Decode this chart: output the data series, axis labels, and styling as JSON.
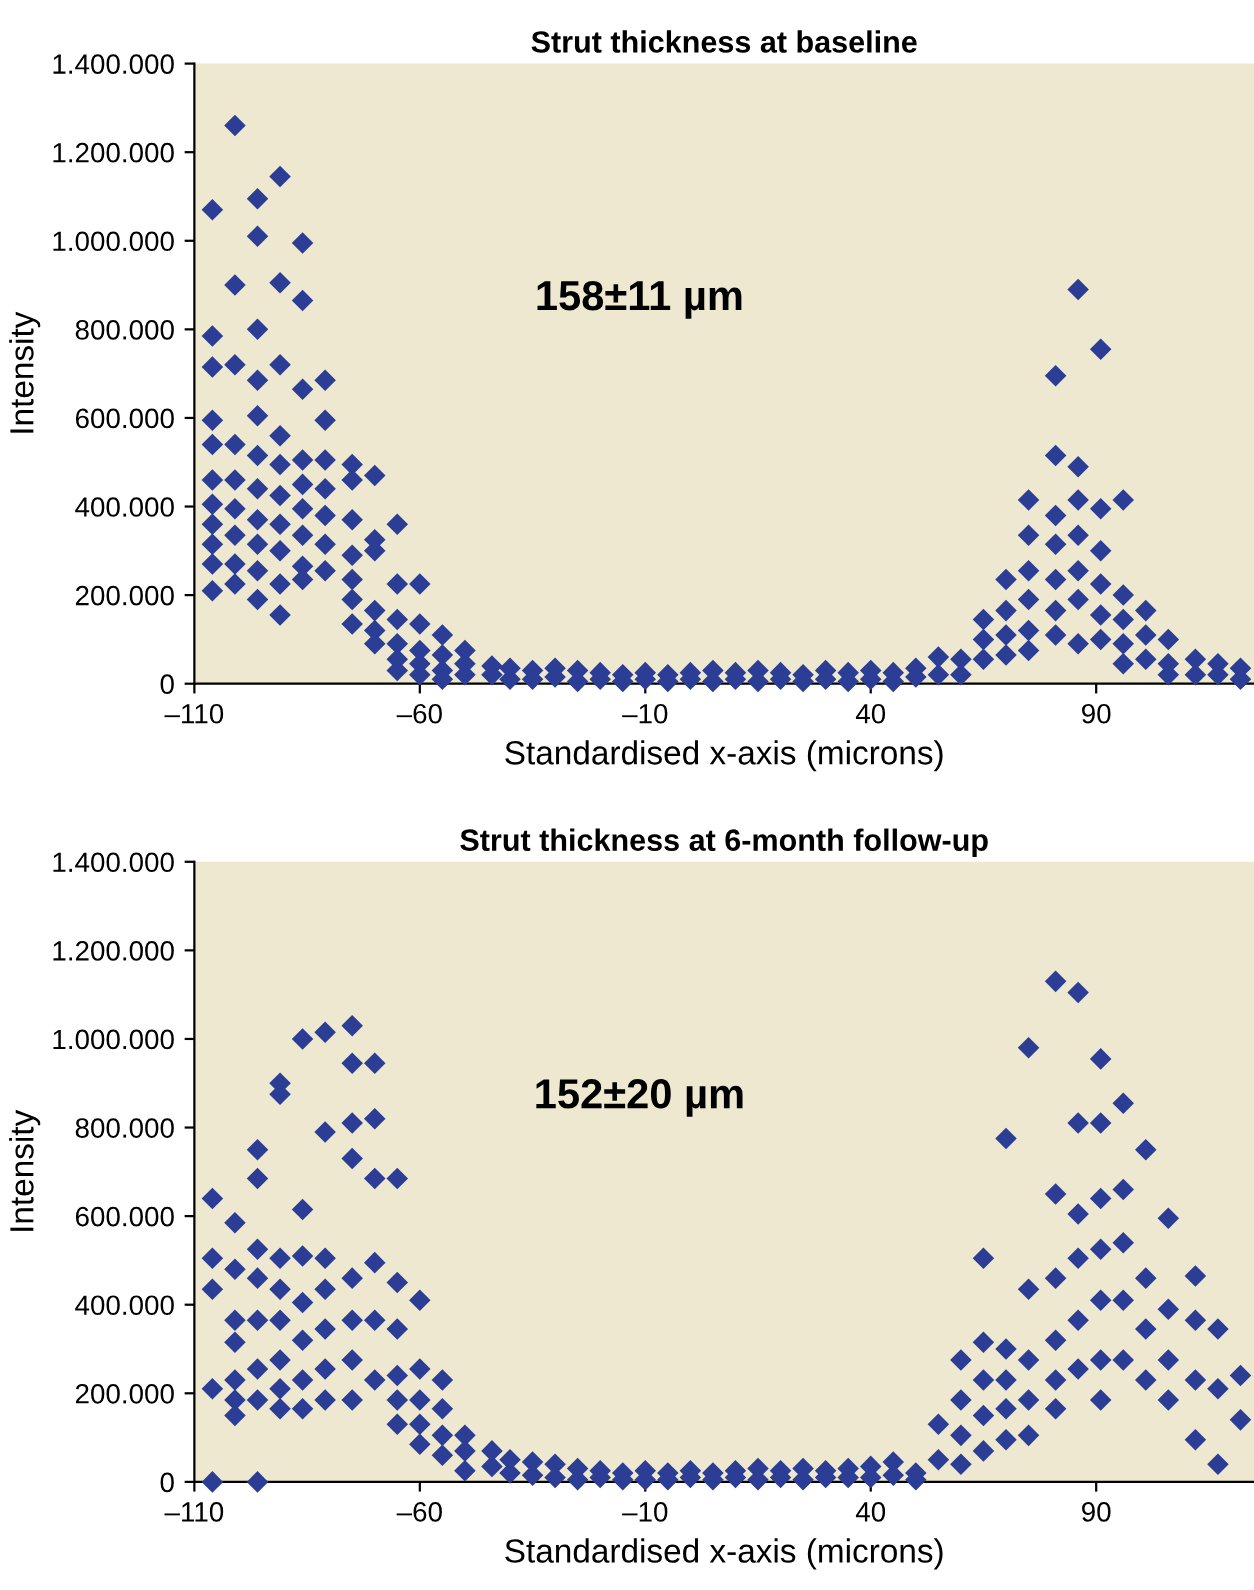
{
  "chart_data": [
    {
      "type": "scatter",
      "title": "Strut thickness at baseline",
      "xlabel": "Standardised x-axis (microns)",
      "ylabel": "Intensity",
      "annotations": [
        "158±11 µm"
      ],
      "color": "#2b3d94",
      "marker": "diamond",
      "grid": false,
      "legend": false,
      "xlim": [
        -110,
        125
      ],
      "ylim": [
        0,
        1400000
      ],
      "xticks": [
        {
          "value": -110,
          "label": "–110"
        },
        {
          "value": -60,
          "label": "–60"
        },
        {
          "value": -10,
          "label": "–10"
        },
        40,
        90
      ],
      "yticks": [
        0,
        {
          "value": 200000,
          "label": "200.000"
        },
        {
          "value": 400000,
          "label": "400.000"
        },
        {
          "value": 600000,
          "label": "600.000"
        },
        {
          "value": 800000,
          "label": "800.000"
        },
        {
          "value": 1000000,
          "label": "1.000.000"
        },
        {
          "value": 1200000,
          "label": "1.200.000"
        },
        {
          "value": 1400000,
          "label": "1.400.000"
        }
      ],
      "x": [
        -106,
        -106,
        -106,
        -106,
        -106,
        -106,
        -106,
        -106,
        -106,
        -106,
        -106,
        -101,
        -101,
        -101,
        -101,
        -101,
        -101,
        -101,
        -101,
        -101,
        -96,
        -96,
        -96,
        -96,
        -96,
        -96,
        -96,
        -96,
        -96,
        -96,
        -96,
        -91,
        -91,
        -91,
        -91,
        -91,
        -91,
        -91,
        -91,
        -91,
        -91,
        -86,
        -86,
        -86,
        -86,
        -86,
        -86,
        -86,
        -86,
        -86,
        -81,
        -81,
        -81,
        -81,
        -81,
        -81,
        -81,
        -75,
        -75,
        -75,
        -75,
        -75,
        -75,
        -75,
        -70,
        -70,
        -70,
        -70,
        -70,
        -70,
        -65,
        -65,
        -65,
        -65,
        -65,
        -65,
        -60,
        -60,
        -60,
        -60,
        -60,
        -55,
        -55,
        -55,
        -55,
        -50,
        -50,
        -50,
        -44,
        -44,
        -40,
        -40,
        -35,
        -35,
        -30,
        -30,
        -25,
        -25,
        -20,
        -20,
        -15,
        -15,
        -10,
        -10,
        -5,
        -5,
        0,
        0,
        5,
        5,
        10,
        10,
        15,
        15,
        20,
        20,
        25,
        25,
        30,
        30,
        35,
        35,
        40,
        40,
        45,
        45,
        50,
        50,
        55,
        55,
        60,
        60,
        65,
        65,
        65,
        70,
        70,
        70,
        70,
        75,
        75,
        75,
        75,
        75,
        75,
        81,
        81,
        81,
        81,
        81,
        81,
        81,
        86,
        86,
        86,
        86,
        86,
        86,
        86,
        91,
        91,
        91,
        91,
        91,
        91,
        96,
        96,
        96,
        96,
        96,
        101,
        101,
        101,
        106,
        106,
        106,
        112,
        112,
        117,
        117,
        122,
        122
      ],
      "values": [
        1070000,
        785000,
        715000,
        595000,
        540000,
        460000,
        405000,
        360000,
        315000,
        270000,
        210000,
        1260000,
        900000,
        720000,
        540000,
        460000,
        395000,
        335000,
        270000,
        225000,
        1095000,
        1010000,
        800000,
        685000,
        605000,
        515000,
        440000,
        370000,
        315000,
        255000,
        190000,
        1145000,
        905000,
        720000,
        560000,
        495000,
        425000,
        360000,
        300000,
        225000,
        155000,
        995000,
        865000,
        665000,
        505000,
        450000,
        395000,
        335000,
        265000,
        235000,
        685000,
        595000,
        505000,
        440000,
        380000,
        315000,
        255000,
        495000,
        460000,
        370000,
        290000,
        235000,
        190000,
        135000,
        470000,
        325000,
        300000,
        165000,
        120000,
        90000,
        360000,
        225000,
        145000,
        90000,
        55000,
        30000,
        225000,
        135000,
        75000,
        45000,
        20000,
        110000,
        65000,
        30000,
        10000,
        75000,
        45000,
        20000,
        40000,
        20000,
        35000,
        10000,
        30000,
        10000,
        35000,
        15000,
        30000,
        5000,
        25000,
        10000,
        20000,
        5000,
        25000,
        10000,
        20000,
        5000,
        25000,
        10000,
        30000,
        5000,
        25000,
        10000,
        30000,
        5000,
        25000,
        10000,
        20000,
        5000,
        30000,
        10000,
        25000,
        5000,
        30000,
        10000,
        25000,
        5000,
        35000,
        15000,
        60000,
        20000,
        55000,
        20000,
        145000,
        100000,
        55000,
        235000,
        165000,
        110000,
        65000,
        415000,
        335000,
        255000,
        190000,
        120000,
        75000,
        695000,
        515000,
        380000,
        315000,
        235000,
        165000,
        110000,
        890000,
        490000,
        415000,
        335000,
        255000,
        190000,
        90000,
        755000,
        395000,
        300000,
        225000,
        155000,
        100000,
        415000,
        200000,
        145000,
        90000,
        45000,
        165000,
        110000,
        55000,
        100000,
        45000,
        20000,
        55000,
        20000,
        45000,
        20000,
        35000,
        10000
      ]
    },
    {
      "type": "scatter",
      "title": "Strut thickness at 6-month follow-up",
      "xlabel": "Standardised x-axis (microns)",
      "ylabel": "Intensity",
      "annotations": [
        "152±20 µm"
      ],
      "color": "#2b3d94",
      "marker": "diamond",
      "grid": false,
      "legend": false,
      "xlim": [
        -110,
        125
      ],
      "ylim": [
        0,
        1400000
      ],
      "xticks": [
        {
          "value": -110,
          "label": "–110"
        },
        {
          "value": -60,
          "label": "–60"
        },
        {
          "value": -10,
          "label": "–10"
        },
        40,
        90
      ],
      "yticks": [
        0,
        {
          "value": 200000,
          "label": "200.000"
        },
        {
          "value": 400000,
          "label": "400.000"
        },
        {
          "value": 600000,
          "label": "600.000"
        },
        {
          "value": 800000,
          "label": "800.000"
        },
        {
          "value": 1000000,
          "label": "1.000.000"
        },
        {
          "value": 1200000,
          "label": "1.200.000"
        },
        {
          "value": 1400000,
          "label": "1.400.000"
        }
      ],
      "x": [
        -106,
        -106,
        -106,
        -106,
        -106,
        -101,
        -101,
        -101,
        -101,
        -101,
        -101,
        -101,
        -96,
        -96,
        -96,
        -96,
        -96,
        -96,
        -96,
        -96,
        -91,
        -91,
        -91,
        -91,
        -91,
        -91,
        -91,
        -91,
        -86,
        -86,
        -86,
        -86,
        -86,
        -86,
        -86,
        -81,
        -81,
        -81,
        -81,
        -81,
        -81,
        -81,
        -75,
        -75,
        -75,
        -75,
        -75,
        -75,
        -75,
        -75,
        -70,
        -70,
        -70,
        -70,
        -70,
        -70,
        -65,
        -65,
        -65,
        -65,
        -65,
        -65,
        -60,
        -60,
        -60,
        -60,
        -60,
        -55,
        -55,
        -55,
        -55,
        -50,
        -50,
        -50,
        -44,
        -44,
        -40,
        -40,
        -35,
        -35,
        -30,
        -30,
        -25,
        -25,
        -20,
        -20,
        -15,
        -15,
        -10,
        -10,
        -5,
        -5,
        0,
        0,
        5,
        5,
        10,
        10,
        15,
        15,
        20,
        20,
        25,
        25,
        30,
        30,
        35,
        35,
        40,
        40,
        45,
        45,
        50,
        50,
        55,
        55,
        60,
        60,
        60,
        60,
        65,
        65,
        65,
        65,
        65,
        70,
        70,
        70,
        70,
        70,
        75,
        75,
        75,
        75,
        75,
        81,
        81,
        81,
        81,
        81,
        81,
        86,
        86,
        86,
        86,
        86,
        86,
        91,
        91,
        91,
        91,
        91,
        91,
        91,
        96,
        96,
        96,
        96,
        96,
        101,
        101,
        101,
        101,
        106,
        106,
        106,
        106,
        112,
        112,
        112,
        112,
        117,
        117,
        117,
        122,
        122
      ],
      "values": [
        640000,
        505000,
        435000,
        210000,
        0,
        585000,
        480000,
        365000,
        315000,
        230000,
        185000,
        150000,
        750000,
        685000,
        525000,
        460000,
        365000,
        255000,
        185000,
        0,
        900000,
        875000,
        505000,
        435000,
        365000,
        275000,
        210000,
        165000,
        1000000,
        615000,
        510000,
        405000,
        320000,
        230000,
        165000,
        1015000,
        790000,
        505000,
        435000,
        345000,
        255000,
        185000,
        1030000,
        945000,
        810000,
        730000,
        460000,
        365000,
        275000,
        185000,
        945000,
        820000,
        685000,
        495000,
        365000,
        230000,
        685000,
        450000,
        345000,
        240000,
        185000,
        130000,
        410000,
        255000,
        185000,
        130000,
        85000,
        230000,
        165000,
        105000,
        60000,
        105000,
        70000,
        25000,
        70000,
        35000,
        50000,
        20000,
        45000,
        15000,
        40000,
        10000,
        30000,
        5000,
        25000,
        10000,
        20000,
        5000,
        25000,
        5000,
        20000,
        5000,
        25000,
        10000,
        20000,
        5000,
        25000,
        10000,
        30000,
        5000,
        25000,
        10000,
        30000,
        5000,
        25000,
        10000,
        30000,
        10000,
        35000,
        10000,
        45000,
        15000,
        20000,
        5000,
        130000,
        50000,
        275000,
        185000,
        105000,
        40000,
        505000,
        315000,
        230000,
        150000,
        70000,
        775000,
        300000,
        230000,
        165000,
        95000,
        980000,
        435000,
        275000,
        185000,
        105000,
        1130000,
        650000,
        460000,
        320000,
        230000,
        165000,
        1105000,
        810000,
        605000,
        505000,
        365000,
        255000,
        955000,
        810000,
        640000,
        525000,
        410000,
        275000,
        185000,
        855000,
        660000,
        540000,
        410000,
        275000,
        750000,
        460000,
        345000,
        230000,
        595000,
        390000,
        275000,
        185000,
        465000,
        365000,
        230000,
        95000,
        345000,
        210000,
        40000,
        240000,
        140000
      ]
    }
  ]
}
